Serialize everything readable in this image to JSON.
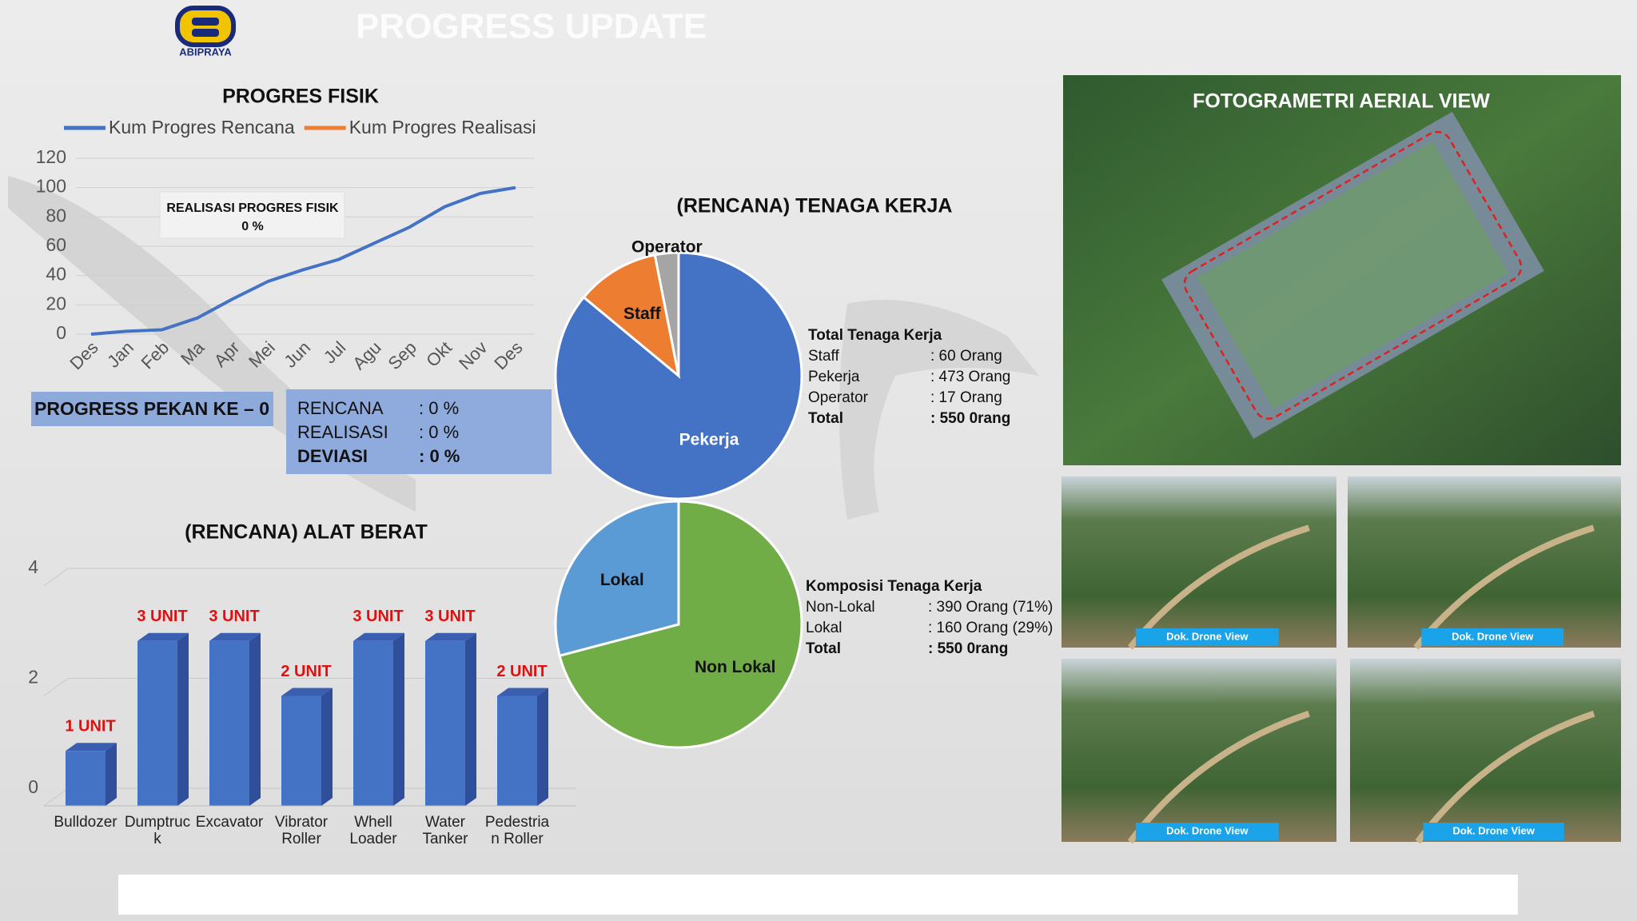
{
  "header": {
    "logo": "ABIPRAYA",
    "title": "PROGRESS UPDATE"
  },
  "chart_data": [
    {
      "type": "line",
      "title": "PROGRES FISIK",
      "categories": [
        "Des",
        "Jan",
        "Feb",
        "Ma",
        "Apr",
        "Mei",
        "Jun",
        "Jul",
        "Agu",
        "Sep",
        "Okt",
        "Nov",
        "Des"
      ],
      "series": [
        {
          "name": "Kum Progres Rencana",
          "color": "#4472c4",
          "values": [
            0,
            2,
            3,
            11,
            24,
            36,
            44,
            51,
            62,
            73,
            87,
            96,
            100
          ]
        },
        {
          "name": "Kum Progres Realisasi",
          "color": "#ed7d31",
          "values": [
            null,
            null,
            null,
            null,
            null,
            null,
            null,
            null,
            null,
            null,
            null,
            null,
            null
          ]
        }
      ],
      "ylim": [
        0,
        120
      ],
      "yticks": [
        0,
        20,
        40,
        60,
        80,
        100,
        120
      ],
      "grid": true,
      "annotation": {
        "title": "REALISASI PROGRES FISIK",
        "value": "0 %"
      }
    },
    {
      "type": "bar",
      "title": "(RENCANA) ALAT BERAT",
      "categories": [
        "Bulldozer",
        "Dumptruck",
        "Excavator",
        "Vibrator Roller",
        "Whell Loader",
        "Water Tanker",
        "Pedestrian Roller"
      ],
      "values": [
        1,
        3,
        3,
        2,
        3,
        3,
        2
      ],
      "value_labels": [
        "1 UNIT",
        "3 UNIT",
        "3 UNIT",
        "2 UNIT",
        "3 UNIT",
        "3 UNIT",
        "2 UNIT"
      ],
      "color": "#4472c4",
      "ylim": [
        0,
        4
      ],
      "yticks": [
        0,
        2,
        4
      ],
      "grid": true
    },
    {
      "type": "pie",
      "title": "(RENCANA) TENAGA KERJA",
      "categories": [
        "Pekerja",
        "Staff",
        "Operator"
      ],
      "values": [
        473,
        60,
        17
      ],
      "colors": [
        "#4472c4",
        "#ed7d31",
        "#a5a5a5"
      ]
    },
    {
      "type": "pie",
      "categories": [
        "Non Lokal",
        "Lokal"
      ],
      "values": [
        390,
        160
      ],
      "colors": [
        "#70ad47",
        "#5b9bd5"
      ]
    }
  ],
  "progress": {
    "week": "PROGRESS PEKAN KE – 0",
    "rows": [
      [
        "RENCANA",
        ":  0 %"
      ],
      [
        "REALISASI",
        ":  0 %"
      ],
      [
        "DEVIASI",
        ":  0 %"
      ]
    ]
  },
  "workforce_total": {
    "title": "Total Tenaga Kerja",
    "rows": [
      [
        "Staff",
        ": 60 Orang"
      ],
      [
        "Pekerja",
        ": 473 Orang"
      ],
      [
        "Operator",
        ": 17 Orang"
      ],
      [
        "Total",
        ": 550 0rang"
      ]
    ]
  },
  "workforce_composition": {
    "title": "Komposisi Tenaga Kerja",
    "rows": [
      [
        "Non-Lokal",
        ": 390 Orang (71%)"
      ],
      [
        "Lokal",
        ": 160 Orang (29%)"
      ],
      [
        "Total",
        ": 550 0rang"
      ]
    ]
  },
  "aerial": {
    "title": "FOTOGRAMETRI AERIAL VIEW"
  },
  "photos": [
    "Dok. Drone View",
    "Dok. Drone View",
    "Dok. Drone View",
    "Dok. Drone View"
  ]
}
